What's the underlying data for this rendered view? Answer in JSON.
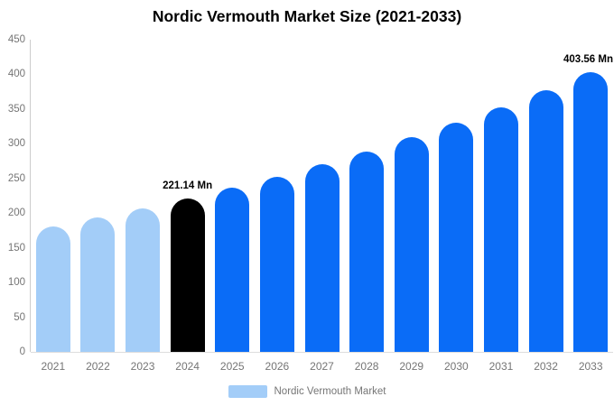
{
  "title": "Nordic Vermouth Market Size (2021-2033)",
  "chart_data": {
    "type": "bar",
    "title": "Nordic Vermouth Market Size (2021-2033)",
    "categories": [
      "2021",
      "2022",
      "2023",
      "2024",
      "2025",
      "2026",
      "2027",
      "2028",
      "2029",
      "2030",
      "2031",
      "2032",
      "2033"
    ],
    "values": [
      181.0,
      193.5,
      206.9,
      221.14,
      236.4,
      252.8,
      270.2,
      288.9,
      308.9,
      330.2,
      353.1,
      377.5,
      403.56
    ],
    "series_name": "Nordic Vermouth Market",
    "unit": "Mn",
    "xlabel": "",
    "ylabel": "",
    "ylim": [
      0,
      450
    ],
    "yticks": [
      0,
      50,
      100,
      150,
      200,
      250,
      300,
      350,
      400,
      450
    ],
    "grid": false,
    "legend_position": "bottom",
    "bar_color_keys": [
      "historical",
      "historical",
      "historical",
      "highlight",
      "forecast",
      "forecast",
      "forecast",
      "forecast",
      "forecast",
      "forecast",
      "forecast",
      "forecast",
      "forecast"
    ],
    "annotations": [
      {
        "category": "2024",
        "text": "221.14 Mn"
      },
      {
        "category": "2033",
        "text": "403.56 Mn"
      }
    ]
  },
  "colors": {
    "historical": "#a3cdf8",
    "highlight": "#000000",
    "forecast": "#0a6cf7",
    "axis_text": "#757575",
    "axis_line": "#cccccc"
  },
  "legend": {
    "label": "Nordic Vermouth Market",
    "swatch_color": "#a3cdf8"
  }
}
